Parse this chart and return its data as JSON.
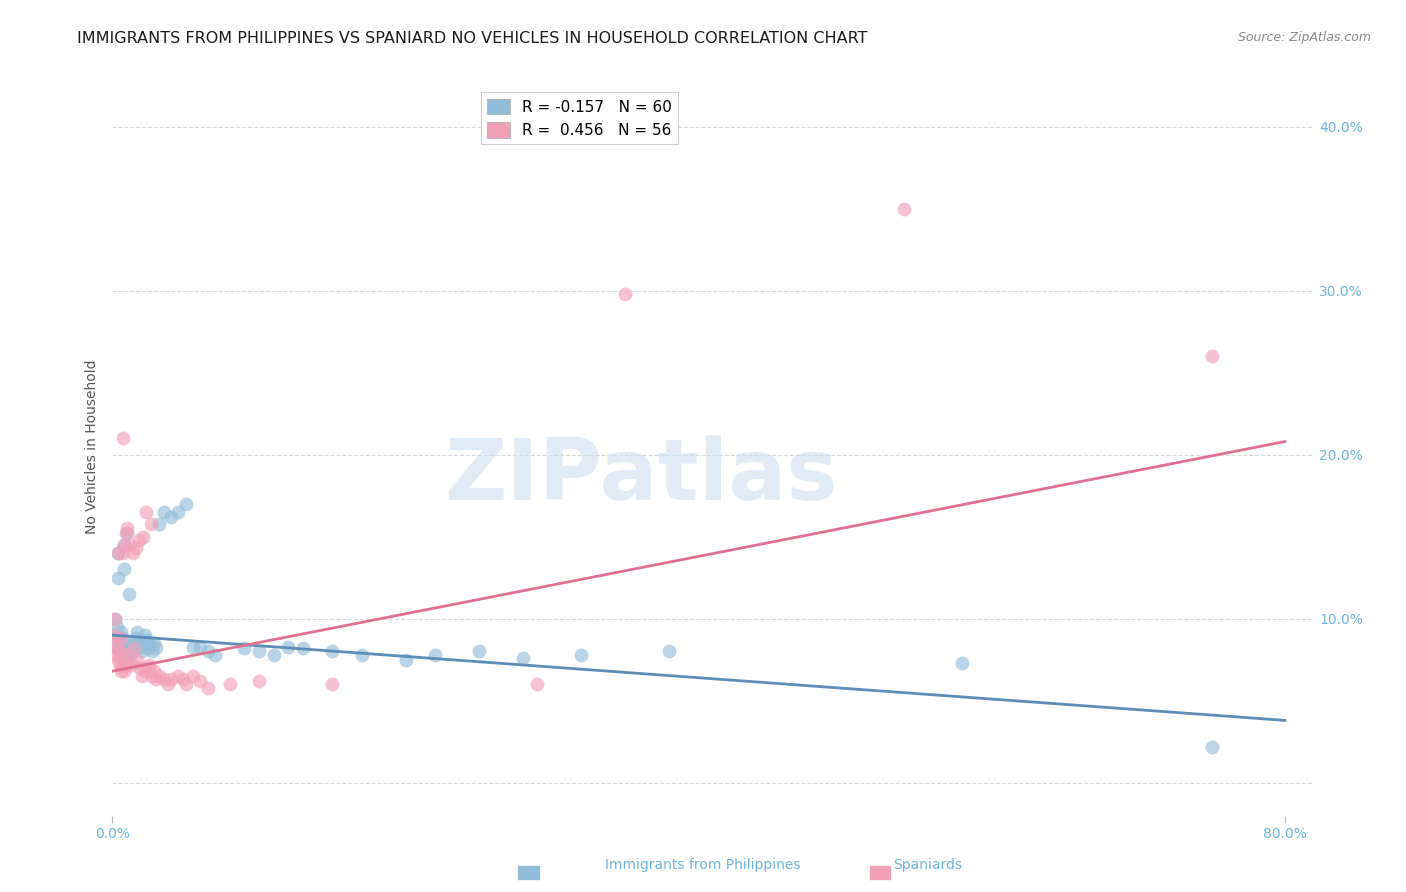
{
  "title": "IMMIGRANTS FROM PHILIPPINES VS SPANIARD NO VEHICLES IN HOUSEHOLD CORRELATION CHART",
  "source": "Source: ZipAtlas.com",
  "ylabel": "No Vehicles in Household",
  "xlim": [
    0.0,
    0.82
  ],
  "ylim": [
    -0.02,
    0.43
  ],
  "ytick_vals": [
    0.0,
    0.1,
    0.2,
    0.3,
    0.4
  ],
  "ytick_labels": [
    "",
    "10.0%",
    "20.0%",
    "30.0%",
    "40.0%"
  ],
  "xtick_vals": [
    0.0,
    0.8
  ],
  "xtick_labels": [
    "0.0%",
    "80.0%"
  ],
  "blue_color": "#92BDD9",
  "pink_color": "#F2A0B8",
  "blue_line_color": "#5B8DB8",
  "pink_line_color": "#E07090",
  "tick_color": "#6EB3DC",
  "grid_color": "#d8d8d8",
  "blue_line": {
    "x0": 0.0,
    "x1": 0.8,
    "y0": 0.09,
    "y1": 0.038
  },
  "pink_line": {
    "x0": 0.0,
    "x1": 0.8,
    "y0": 0.068,
    "y1": 0.208
  },
  "blue_scatter": [
    [
      0.001,
      0.09
    ],
    [
      0.002,
      0.1
    ],
    [
      0.002,
      0.082
    ],
    [
      0.003,
      0.095
    ],
    [
      0.003,
      0.088
    ],
    [
      0.004,
      0.14
    ],
    [
      0.004,
      0.125
    ],
    [
      0.005,
      0.085
    ],
    [
      0.005,
      0.078
    ],
    [
      0.006,
      0.092
    ],
    [
      0.006,
      0.082
    ],
    [
      0.007,
      0.088
    ],
    [
      0.007,
      0.075
    ],
    [
      0.008,
      0.145
    ],
    [
      0.008,
      0.13
    ],
    [
      0.008,
      0.085
    ],
    [
      0.009,
      0.078
    ],
    [
      0.01,
      0.08
    ],
    [
      0.01,
      0.152
    ],
    [
      0.011,
      0.115
    ],
    [
      0.012,
      0.083
    ],
    [
      0.013,
      0.079
    ],
    [
      0.014,
      0.082
    ],
    [
      0.015,
      0.085
    ],
    [
      0.016,
      0.088
    ],
    [
      0.017,
      0.092
    ],
    [
      0.018,
      0.086
    ],
    [
      0.019,
      0.083
    ],
    [
      0.02,
      0.08
    ],
    [
      0.022,
      0.09
    ],
    [
      0.023,
      0.087
    ],
    [
      0.024,
      0.082
    ],
    [
      0.025,
      0.085
    ],
    [
      0.027,
      0.08
    ],
    [
      0.028,
      0.085
    ],
    [
      0.03,
      0.082
    ],
    [
      0.032,
      0.158
    ],
    [
      0.035,
      0.165
    ],
    [
      0.04,
      0.162
    ],
    [
      0.045,
      0.165
    ],
    [
      0.05,
      0.17
    ],
    [
      0.055,
      0.083
    ],
    [
      0.06,
      0.083
    ],
    [
      0.065,
      0.08
    ],
    [
      0.07,
      0.078
    ],
    [
      0.09,
      0.082
    ],
    [
      0.1,
      0.08
    ],
    [
      0.11,
      0.078
    ],
    [
      0.12,
      0.083
    ],
    [
      0.13,
      0.082
    ],
    [
      0.15,
      0.08
    ],
    [
      0.17,
      0.078
    ],
    [
      0.2,
      0.075
    ],
    [
      0.22,
      0.078
    ],
    [
      0.25,
      0.08
    ],
    [
      0.28,
      0.076
    ],
    [
      0.32,
      0.078
    ],
    [
      0.38,
      0.08
    ],
    [
      0.58,
      0.073
    ],
    [
      0.75,
      0.022
    ]
  ],
  "pink_scatter": [
    [
      0.001,
      0.09
    ],
    [
      0.002,
      0.085
    ],
    [
      0.002,
      0.1
    ],
    [
      0.003,
      0.078
    ],
    [
      0.003,
      0.082
    ],
    [
      0.004,
      0.075
    ],
    [
      0.004,
      0.14
    ],
    [
      0.005,
      0.072
    ],
    [
      0.005,
      0.08
    ],
    [
      0.006,
      0.068
    ],
    [
      0.006,
      0.088
    ],
    [
      0.007,
      0.072
    ],
    [
      0.007,
      0.14
    ],
    [
      0.007,
      0.21
    ],
    [
      0.008,
      0.068
    ],
    [
      0.008,
      0.145
    ],
    [
      0.009,
      0.072
    ],
    [
      0.009,
      0.152
    ],
    [
      0.01,
      0.075
    ],
    [
      0.01,
      0.155
    ],
    [
      0.011,
      0.078
    ],
    [
      0.012,
      0.145
    ],
    [
      0.013,
      0.072
    ],
    [
      0.014,
      0.14
    ],
    [
      0.015,
      0.082
    ],
    [
      0.016,
      0.143
    ],
    [
      0.017,
      0.075
    ],
    [
      0.018,
      0.148
    ],
    [
      0.019,
      0.07
    ],
    [
      0.02,
      0.065
    ],
    [
      0.021,
      0.15
    ],
    [
      0.022,
      0.068
    ],
    [
      0.023,
      0.165
    ],
    [
      0.024,
      0.07
    ],
    [
      0.025,
      0.072
    ],
    [
      0.026,
      0.158
    ],
    [
      0.027,
      0.065
    ],
    [
      0.028,
      0.068
    ],
    [
      0.03,
      0.063
    ],
    [
      0.032,
      0.065
    ],
    [
      0.035,
      0.063
    ],
    [
      0.038,
      0.06
    ],
    [
      0.04,
      0.063
    ],
    [
      0.045,
      0.065
    ],
    [
      0.048,
      0.063
    ],
    [
      0.05,
      0.06
    ],
    [
      0.055,
      0.065
    ],
    [
      0.06,
      0.062
    ],
    [
      0.065,
      0.058
    ],
    [
      0.08,
      0.06
    ],
    [
      0.1,
      0.062
    ],
    [
      0.15,
      0.06
    ],
    [
      0.29,
      0.06
    ],
    [
      0.35,
      0.298
    ],
    [
      0.54,
      0.35
    ],
    [
      0.75,
      0.26
    ]
  ],
  "watermark_text": "ZIPatlas",
  "watermark_color": "#C8DCF0",
  "watermark_alpha": 0.55,
  "title_fontsize": 11.5,
  "source_fontsize": 9,
  "tick_fontsize": 10,
  "ylabel_fontsize": 10,
  "legend_fontsize": 11
}
